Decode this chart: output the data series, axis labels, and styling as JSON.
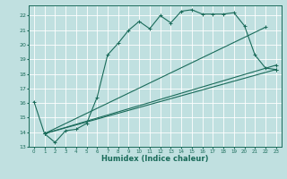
{
  "xlabel": "Humidex (Indice chaleur)",
  "bg_color": "#c0e0e0",
  "line_color": "#1a6b5a",
  "grid_color": "#ffffff",
  "xmin": -0.5,
  "xmax": 23.5,
  "ymin": 13,
  "ymax": 22.7,
  "yticks": [
    13,
    14,
    15,
    16,
    17,
    18,
    19,
    20,
    21,
    22
  ],
  "xticks": [
    0,
    1,
    2,
    3,
    4,
    5,
    6,
    7,
    8,
    9,
    10,
    11,
    12,
    13,
    14,
    15,
    16,
    17,
    18,
    19,
    20,
    21,
    22,
    23
  ],
  "line1_x": [
    0,
    1,
    2,
    3,
    4,
    5,
    6,
    7,
    8,
    9,
    10,
    11,
    12,
    13,
    14,
    15,
    16,
    17,
    18,
    19,
    20,
    21,
    22,
    23
  ],
  "line1_y": [
    16.1,
    13.9,
    13.3,
    14.1,
    14.2,
    14.6,
    16.4,
    19.3,
    20.1,
    21.0,
    21.6,
    21.1,
    22.0,
    21.5,
    22.3,
    22.4,
    22.1,
    22.1,
    22.1,
    22.2,
    21.3,
    19.3,
    18.4,
    18.3
  ],
  "line2_x": [
    1,
    23
  ],
  "line2_y": [
    13.9,
    18.3
  ],
  "line3_x": [
    1,
    22
  ],
  "line3_y": [
    13.9,
    21.2
  ],
  "line4_x": [
    1,
    23
  ],
  "line4_y": [
    13.9,
    18.6
  ]
}
